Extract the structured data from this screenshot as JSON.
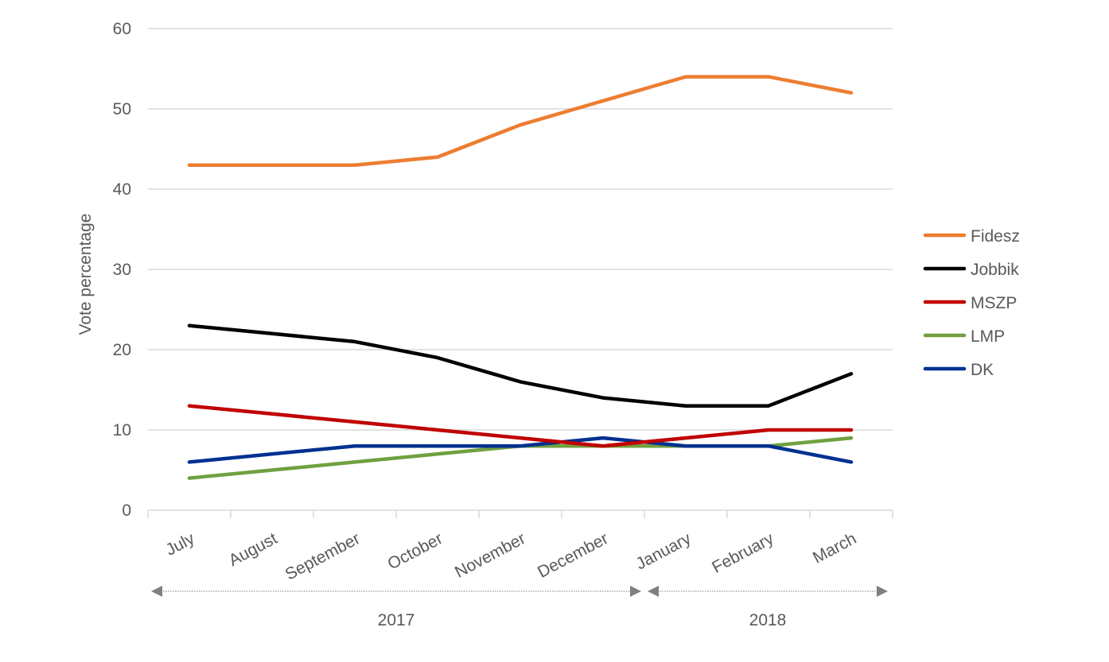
{
  "chart_data": {
    "type": "line",
    "title": "",
    "xlabel": "",
    "ylabel": "Vote percentage",
    "ylim": [
      0,
      60
    ],
    "yticks": [
      "0",
      "10",
      "20",
      "30",
      "40",
      "50",
      "60"
    ],
    "grid": true,
    "legend_placement": "right",
    "categories": [
      "July",
      "August",
      "September",
      "October",
      "November",
      "December",
      "January",
      "February",
      "March"
    ],
    "year_groups": [
      {
        "label": "2017",
        "from": "July",
        "to": "December"
      },
      {
        "label": "2018",
        "from": "January",
        "to": "March"
      }
    ],
    "series": [
      {
        "name": "Fidesz",
        "color": "#ED7D31",
        "values": [
          43,
          43,
          43,
          44,
          48,
          51,
          54,
          54,
          52
        ]
      },
      {
        "name": "Jobbik",
        "color": "#000000",
        "values": [
          23,
          22,
          21,
          19,
          16,
          14,
          13,
          13,
          17
        ]
      },
      {
        "name": "MSZP",
        "color": "#C00000",
        "values": [
          13,
          12,
          11,
          10,
          9,
          8,
          9,
          10,
          10
        ]
      },
      {
        "name": "LMP",
        "color": "#70A040",
        "values": [
          4,
          5,
          6,
          7,
          8,
          8,
          8,
          8,
          9
        ]
      },
      {
        "name": "DK",
        "color": "#003090",
        "values": [
          6,
          7,
          8,
          8,
          8,
          9,
          8,
          8,
          6
        ]
      }
    ]
  }
}
